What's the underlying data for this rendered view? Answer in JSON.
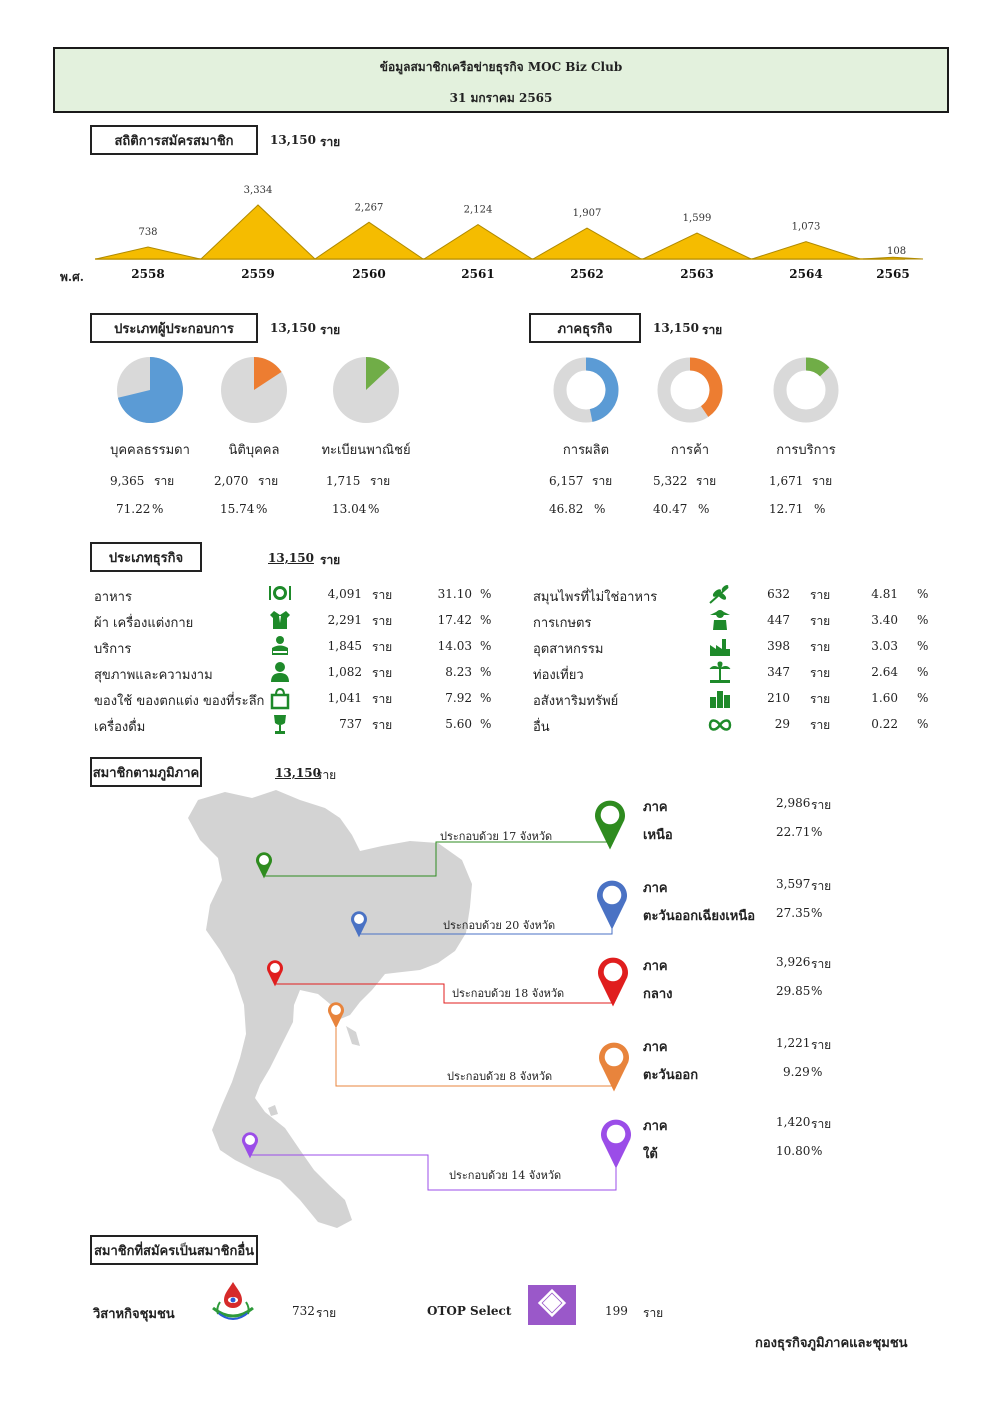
{
  "header": {
    "title": "ข้อมูลสมาชิกเครือข่ายธุรกิจ MOC Biz Club",
    "date": "31 มกราคม 2565"
  },
  "registration": {
    "label": "สถิติการสมัครสมาชิก",
    "total": "13,150",
    "unit": "ราย",
    "era_label": "พ.ศ.",
    "years": [
      "2558",
      "2559",
      "2560",
      "2561",
      "2562",
      "2563",
      "2564",
      "2565"
    ],
    "value_labels": [
      "738",
      "3,334",
      "2,267",
      "2,124",
      "1,907",
      "1,599",
      "1,073",
      "108"
    ]
  },
  "chart_data": {
    "type": "area",
    "title": "",
    "xlabel": "พ.ศ.",
    "ylabel": "",
    "categories": [
      "2558",
      "2559",
      "2560",
      "2561",
      "2562",
      "2563",
      "2564",
      "2565"
    ],
    "values": [
      738,
      3334,
      2267,
      2124,
      1907,
      1599,
      1073,
      108
    ],
    "ylim": [
      0,
      3334
    ],
    "color": "#f5bc00"
  },
  "entrepreneur_type": {
    "label": "ประเภทผู้ประกอบการ",
    "total": "13,150",
    "unit": "ราย",
    "items": [
      {
        "name": "บุคคลธรรมดา",
        "count": "9,365",
        "pct": "71.22",
        "fraction": 0.7122,
        "color": "#5b9bd5"
      },
      {
        "name": "นิติบุคคล",
        "count": "2,070",
        "pct": "15.74",
        "fraction": 0.1574,
        "color": "#ed7d31"
      },
      {
        "name": "ทะเบียนพาณิชย์",
        "count": "1,715",
        "pct": "13.04",
        "fraction": 0.1304,
        "color": "#70ad47"
      }
    ]
  },
  "business_sector": {
    "label": "ภาคธุรกิจ",
    "total": "13,150",
    "unit": "ราย",
    "items": [
      {
        "name": "การผลิต",
        "count": "6,157",
        "pct": "46.82",
        "fraction": 0.4682,
        "color": "#5b9bd5"
      },
      {
        "name": "การค้า",
        "count": "5,322",
        "pct": "40.47",
        "fraction": 0.4047,
        "color": "#ed7d31"
      },
      {
        "name": "การบริการ",
        "count": "1,671",
        "pct": "12.71",
        "fraction": 0.1271,
        "color": "#70ad47"
      }
    ]
  },
  "business_type": {
    "label": "ประเภทธุรกิจ",
    "total": "13,150",
    "unit": "ราย",
    "pct_sign": "%",
    "left": [
      {
        "name": "อาหาร",
        "count": "4,091",
        "pct": "31.10",
        "icon": "dining-icon"
      },
      {
        "name": "ผ้า เครื่องแต่งกาย",
        "count": "2,291",
        "pct": "17.42",
        "icon": "clothing-icon"
      },
      {
        "name": "บริการ",
        "count": "1,845",
        "pct": "14.03",
        "icon": "service-person-icon"
      },
      {
        "name": "สุขภาพและความงาม",
        "count": "1,082",
        "pct": "8.23",
        "icon": "health-person-icon"
      },
      {
        "name": "ของใช้ ของตกแต่ง ของที่ระลึก",
        "count": "1,041",
        "pct": "7.92",
        "icon": "shopping-bag-icon"
      },
      {
        "name": "เครื่องดื่ม",
        "count": "737",
        "pct": "5.60",
        "icon": "wine-glass-icon"
      }
    ],
    "right": [
      {
        "name": "สมุนไพรที่ไม่ใช่อาหาร",
        "count": "632",
        "pct": "4.81",
        "icon": "herb-icon"
      },
      {
        "name": "การเกษตร",
        "count": "447",
        "pct": "3.40",
        "icon": "farm-icon"
      },
      {
        "name": "อุตสาหกรรม",
        "count": "398",
        "pct": "3.03",
        "icon": "factory-icon"
      },
      {
        "name": "ท่องเที่ยว",
        "count": "347",
        "pct": "2.64",
        "icon": "island-icon"
      },
      {
        "name": "อสังหาริมทรัพย์",
        "count": "210",
        "pct": "1.60",
        "icon": "buildings-icon"
      },
      {
        "name": "อื่น",
        "count": "29",
        "pct": "0.22",
        "icon": "infinity-icon"
      }
    ]
  },
  "regions": {
    "label": "สมาชิกตามภูมิภาค",
    "total": "13,150",
    "unit": "ราย",
    "pct_sign": "%",
    "items": [
      {
        "line1": "ภาค",
        "line2": "เหนือ",
        "count": "2,986",
        "pct": "22.71",
        "provinces": "ประกอบด้วย 17 จังหวัด",
        "color": "#2e8b1f"
      },
      {
        "line1": "ภาค",
        "line2": "ตะวันออกเฉียงเหนือ",
        "count": "3,597",
        "pct": "27.35",
        "provinces": "ประกอบด้วย 20 จังหวัด",
        "color": "#4a72c4"
      },
      {
        "line1": "ภาค",
        "line2": "กลาง",
        "count": "3,926",
        "pct": "29.85",
        "provinces": "ประกอบด้วย 18 จังหวัด",
        "color": "#e01e1e"
      },
      {
        "line1": "ภาค",
        "line2": "ตะวันออก",
        "count": "1,221",
        "pct": "9.29",
        "provinces": "ประกอบด้วย 8 จังหวัด",
        "color": "#e8843c"
      },
      {
        "line1": "ภาค",
        "line2": "ใต้",
        "count": "1,420",
        "pct": "10.80",
        "provinces": "ประกอบด้วย 14 จังหวัด",
        "color": "#9b4de8"
      }
    ]
  },
  "other_membership": {
    "label": "สมาชิกที่สมัครเป็นสมาชิกอื่น",
    "community": {
      "name": "วิสาหกิจชุมชน",
      "count": "732",
      "unit": "ราย"
    },
    "otop": {
      "name": "OTOP Select",
      "count": "199",
      "unit": "ราย"
    }
  },
  "footer": {
    "org": "กองธุรกิจภูมิภาคและชุมชน"
  }
}
